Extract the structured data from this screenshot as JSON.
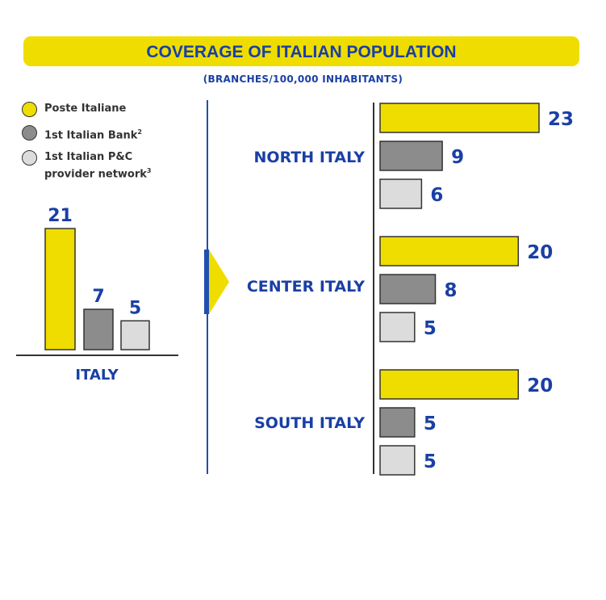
{
  "title": "COVERAGE OF ITALIAN POPULATION",
  "subtitle": "(BRANCHES/100,000 INHABITANTS)",
  "legend": [
    {
      "label": "Poste Italiane",
      "sup": "",
      "color": "#efdd00"
    },
    {
      "label": "1st Italian Bank",
      "sup": "2",
      "color": "#8c8c8c"
    },
    {
      "label": "1st Italian P&C provider network",
      "sup": "3",
      "color": "#dcdcdc"
    }
  ],
  "colors": {
    "accent_blue": "#1a3fa5",
    "yellow": "#efdd00",
    "dark_grey": "#8c8c8c",
    "light_grey": "#dcdcdc"
  },
  "chart_data": [
    {
      "type": "bar",
      "orientation": "vertical",
      "categories": [
        "ITALY"
      ],
      "series": [
        {
          "name": "Poste Italiane",
          "values": [
            21
          ]
        },
        {
          "name": "1st Italian Bank",
          "values": [
            7
          ]
        },
        {
          "name": "1st Italian P&C provider network",
          "values": [
            5
          ]
        }
      ]
    },
    {
      "type": "bar",
      "orientation": "horizontal",
      "categories": [
        "NORTH ITALY",
        "CENTER ITALY",
        "SOUTH ITALY"
      ],
      "series": [
        {
          "name": "Poste Italiane",
          "values": [
            23,
            20,
            20
          ]
        },
        {
          "name": "1st Italian Bank",
          "values": [
            9,
            8,
            5
          ]
        },
        {
          "name": "1st Italian P&C provider network",
          "values": [
            6,
            5,
            5
          ]
        }
      ]
    }
  ]
}
